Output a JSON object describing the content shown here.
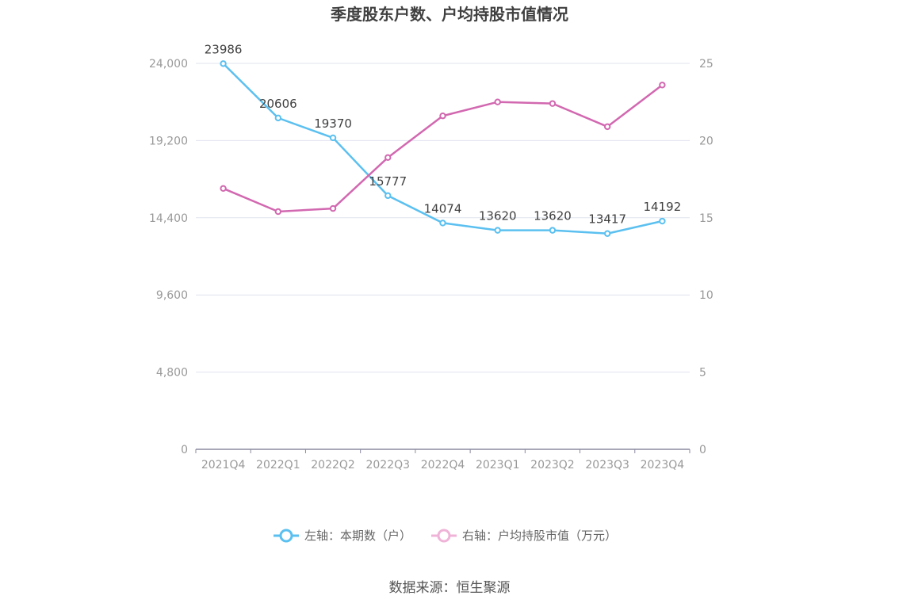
{
  "chart_data": {
    "type": "line",
    "title": "季度股东户数、户均持股市值情况",
    "categories": [
      "2021Q4",
      "2022Q1",
      "2022Q2",
      "2022Q3",
      "2022Q4",
      "2023Q1",
      "2023Q2",
      "2023Q3",
      "2023Q4"
    ],
    "series": [
      {
        "name": "左轴：本期数（户）",
        "axis": "left",
        "color": "#5bc0f0",
        "values": [
          23986,
          20606,
          19370,
          15777,
          14074,
          13620,
          13620,
          13417,
          14192
        ],
        "data_labels": [
          "23986",
          "20606",
          "19370",
          "15777",
          "14074",
          "13620",
          "13620",
          "13417",
          "14192"
        ]
      },
      {
        "name": "右轴：户均持股市值（万元）",
        "axis": "right",
        "color": "#d268b0",
        "values": [
          16.9,
          15.4,
          15.6,
          18.9,
          21.6,
          22.5,
          22.4,
          20.9,
          23.6
        ]
      }
    ],
    "y_left": {
      "min": 0,
      "max": 24000,
      "ticks": [
        "0",
        "4,800",
        "9,600",
        "14,400",
        "19,200",
        "24,000"
      ]
    },
    "y_right": {
      "min": 0,
      "max": 25,
      "ticks": [
        "0",
        "5",
        "10",
        "15",
        "20",
        "25"
      ]
    },
    "grid": true,
    "legend_position": "bottom-center"
  },
  "source_text": "数据来源：恒生聚源"
}
